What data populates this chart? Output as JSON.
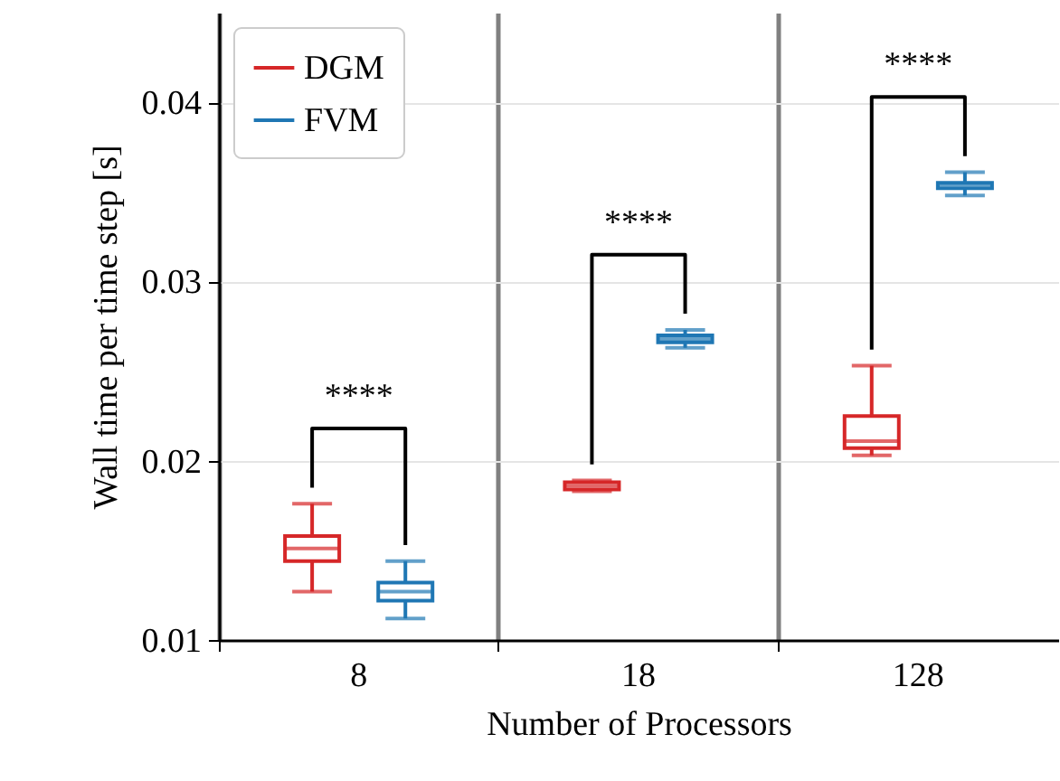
{
  "chart_data": {
    "type": "box",
    "xlabel": "Number of Processors",
    "ylabel": "Wall time per time step [s]",
    "categories": [
      "8",
      "18",
      "128"
    ],
    "series": [
      {
        "name": "DGM",
        "color": "#d62728",
        "boxes": [
          {
            "low": 0.0127,
            "q1": 0.0144,
            "median": 0.0151,
            "q3": 0.0158,
            "high": 0.0176
          },
          {
            "low": 0.0183,
            "q1": 0.0184,
            "median": 0.0186,
            "q3": 0.0188,
            "high": 0.0189
          },
          {
            "low": 0.0203,
            "q1": 0.0207,
            "median": 0.0211,
            "q3": 0.0225,
            "high": 0.0253
          }
        ]
      },
      {
        "name": "FVM",
        "color": "#1f77b4",
        "boxes": [
          {
            "low": 0.0112,
            "q1": 0.0122,
            "median": 0.0127,
            "q3": 0.0132,
            "high": 0.0144
          },
          {
            "low": 0.0263,
            "q1": 0.0266,
            "median": 0.0268,
            "q3": 0.027,
            "high": 0.0273
          },
          {
            "low": 0.0348,
            "q1": 0.0352,
            "median": 0.0354,
            "q3": 0.0355,
            "high": 0.0361
          }
        ]
      }
    ],
    "ylim": [
      0.01,
      0.045
    ],
    "yticks": [
      0.01,
      0.02,
      0.03,
      0.04
    ],
    "grid": "y",
    "legend": "top left",
    "annotations": [
      "****",
      "****",
      "****"
    ]
  }
}
